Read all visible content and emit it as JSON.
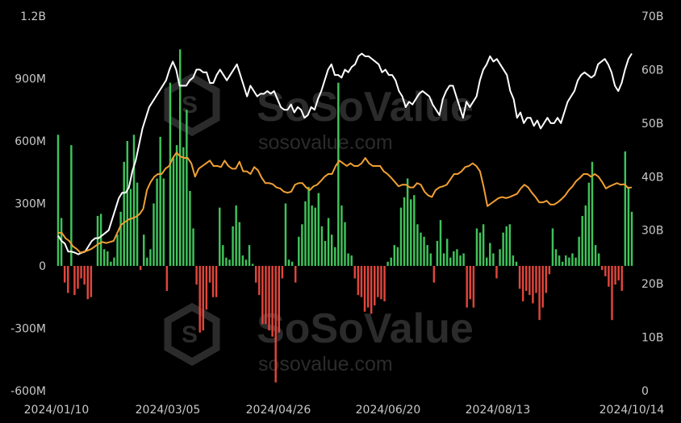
{
  "chart_data": {
    "type": "bar+line",
    "title": "",
    "xlabel": "",
    "y_left": {
      "ylim": [
        -600000000,
        1200000000
      ],
      "ticks": [
        "-600M",
        "-300M",
        "0",
        "300M",
        "600M",
        "900M",
        "1.2B"
      ]
    },
    "y_right": {
      "ylim": [
        0,
        70000000000
      ],
      "ticks": [
        "0",
        "10B",
        "20B",
        "30B",
        "40B",
        "50B",
        "60B",
        "70B"
      ]
    },
    "x_start": "2024/01/10",
    "x_end": "2024/10/14",
    "x_ticks": [
      "2024/01/10",
      "2024/03/05",
      "2024/04/26",
      "2024/06/20",
      "2024/08/13",
      "2024/10/14"
    ],
    "grid": false,
    "legend": "none",
    "bar_series": {
      "axis": "left",
      "colors": {
        "positive": "#3fc35a",
        "negative": "#e0463c"
      },
      "values_millions": [
        630,
        230,
        -80,
        -130,
        580,
        -140,
        -110,
        -60,
        -90,
        -160,
        -150,
        0,
        240,
        250,
        80,
        70,
        20,
        40,
        150,
        260,
        500,
        600,
        370,
        630,
        400,
        -20,
        150,
        40,
        80,
        300,
        420,
        620,
        420,
        -120,
        880,
        520,
        580,
        1040,
        570,
        750,
        360,
        180,
        -90,
        -320,
        -310,
        -210,
        -80,
        -150,
        -150,
        280,
        100,
        40,
        30,
        190,
        290,
        210,
        50,
        30,
        100,
        10,
        -80,
        -140,
        -280,
        -280,
        -310,
        -340,
        -560,
        -320,
        -60,
        300,
        30,
        20,
        -80,
        140,
        200,
        310,
        380,
        290,
        280,
        350,
        190,
        120,
        230,
        150,
        90,
        880,
        290,
        210,
        60,
        50,
        -60,
        -140,
        -150,
        -220,
        -200,
        -230,
        -190,
        -150,
        -160,
        -170,
        20,
        40,
        100,
        90,
        280,
        330,
        420,
        320,
        340,
        200,
        160,
        140,
        100,
        60,
        -80,
        120,
        220,
        60,
        130,
        40,
        70,
        80,
        50,
        60,
        -200,
        -160,
        -200,
        180,
        160,
        200,
        40,
        110,
        60,
        -60,
        80,
        160,
        190,
        200,
        50,
        20,
        -110,
        -170,
        -120,
        -140,
        -180,
        -130,
        -260,
        -200,
        -130,
        -40,
        180,
        80,
        50,
        20,
        50,
        40,
        60,
        40,
        140,
        240,
        290,
        400,
        500,
        100,
        60,
        -20,
        -50,
        -100,
        -260,
        -90,
        -70,
        -120,
        550,
        380,
        260
      ]
    },
    "line_series": [
      {
        "axis": "right",
        "color": "#ffffff",
        "values_billions": [
          29,
          28,
          27.5,
          26,
          26,
          25.8,
          25.5,
          25.8,
          26,
          27,
          28,
          28.5,
          28.5,
          29,
          29.5,
          30,
          32,
          34,
          36,
          37,
          37,
          38,
          41,
          43,
          46,
          49,
          51,
          53,
          54,
          55,
          56,
          57,
          58,
          60,
          61.5,
          60,
          57,
          57,
          57,
          58,
          58.5,
          60,
          60,
          59.5,
          59.5,
          57.5,
          57.5,
          59,
          60,
          59,
          58,
          59,
          60,
          61,
          59,
          57,
          55,
          57,
          56,
          55,
          55.5,
          55.5,
          56,
          55.5,
          56,
          54.5,
          53,
          52.5,
          52.5,
          53.5,
          52,
          53,
          52.5,
          51,
          51.5,
          53,
          52.5,
          54.5,
          56,
          58,
          60,
          61,
          59,
          59,
          58.5,
          60,
          59.5,
          60.5,
          61,
          62.5,
          63,
          62.5,
          62.5,
          62,
          61.5,
          61,
          59.5,
          60,
          59,
          59,
          58,
          56,
          55,
          53,
          54,
          53.5,
          54.5,
          55.5,
          56,
          55.5,
          55,
          53.5,
          52.5,
          51.5,
          54.5,
          56,
          57,
          57,
          55,
          53,
          51,
          54,
          53,
          54,
          55,
          58,
          60,
          61,
          62.5,
          61.5,
          62,
          61,
          60,
          59,
          56,
          54.5,
          51,
          52,
          50,
          51,
          51,
          49.5,
          50.5,
          49,
          50,
          51,
          50,
          50,
          51,
          50,
          52,
          54,
          55,
          56,
          58,
          59,
          59.5,
          59,
          58.5,
          59,
          61,
          61.5,
          62,
          61,
          59.5,
          57,
          56,
          57.5,
          60,
          62,
          63
        ]
      },
      {
        "axis": "right",
        "color": "#f0a032",
        "values_billions": [
          29.5,
          29.5,
          28.5,
          28,
          27,
          26.5,
          25.8,
          26,
          26.2,
          26.5,
          27,
          27.5,
          27.8,
          27.6,
          27.8,
          28,
          29.5,
          31,
          31.5,
          32,
          32.2,
          32.5,
          33,
          34,
          37.5,
          39,
          40,
          40.5,
          40.5,
          41.5,
          42,
          43.5,
          44.5,
          43.8,
          43.5,
          43.5,
          42.5,
          40,
          41.5,
          42,
          42.5,
          43,
          42,
          42,
          41.8,
          43,
          42,
          41.5,
          41.5,
          42.8,
          41,
          41,
          40.5,
          41.8,
          41.2,
          39.8,
          38.8,
          38.8,
          38.6,
          38,
          37.8,
          37.2,
          37,
          37.2,
          38.5,
          38.8,
          38.8,
          38,
          37.5,
          38.2,
          38.5,
          39.2,
          40,
          40.5,
          40.5,
          42,
          43,
          42.5,
          42,
          42.5,
          42,
          42,
          42.5,
          43.5,
          42.5,
          42,
          42,
          42,
          41,
          40.5,
          39.8,
          39,
          38.2,
          38.5,
          38.5,
          38,
          38,
          38.8,
          38.5,
          37.2,
          36.5,
          36.2,
          37.5,
          38,
          38.2,
          38.5,
          39.5,
          40.5,
          40.5,
          41,
          41.8,
          42,
          42.5,
          42,
          41,
          38,
          34.5,
          35,
          35.5,
          36,
          36.2,
          36,
          36.2,
          36.5,
          36.8,
          37.8,
          38.5,
          38,
          37,
          36.2,
          35.2,
          35.2,
          35.5,
          34.8,
          34.8,
          35.2,
          35.8,
          36.5,
          37.5,
          38.2,
          39.2,
          39.8,
          40.5,
          40.5,
          40,
          40.5,
          40,
          39,
          37.8,
          38.2,
          38.5,
          38.8,
          38.5,
          38.6,
          37.9,
          38
        ]
      }
    ]
  },
  "watermark": {
    "brand": "SoSoValue",
    "url": "sosovalue.com"
  }
}
